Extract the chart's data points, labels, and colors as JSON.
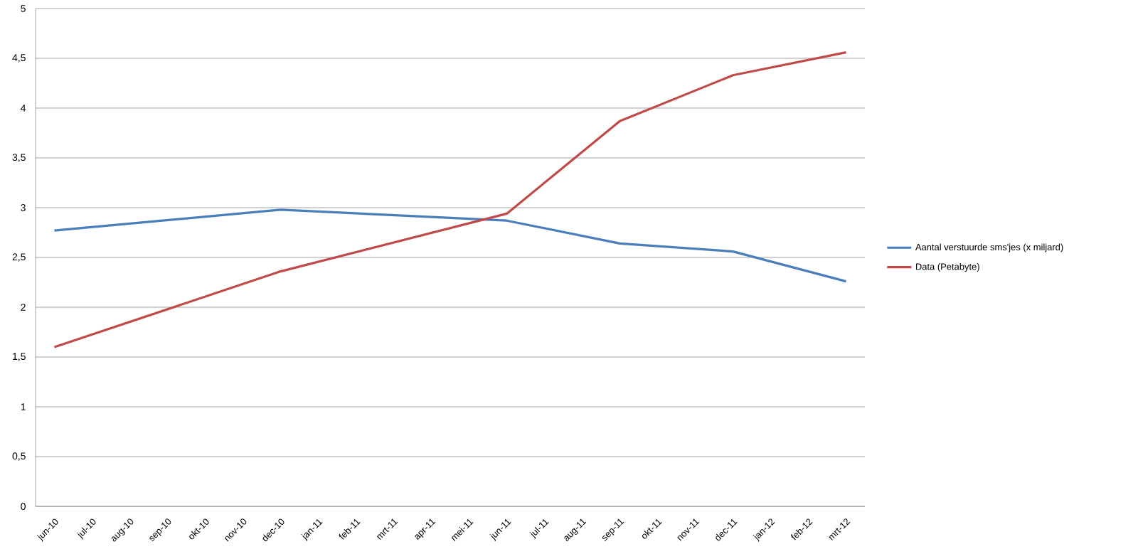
{
  "chart_data": {
    "type": "line",
    "categories": [
      "jun-10",
      "jul-10",
      "aug-10",
      "sep-10",
      "okt-10",
      "nov-10",
      "dec-10",
      "jan-11",
      "feb-11",
      "mrt-11",
      "apr-11",
      "mei-11",
      "jun-11",
      "jul-11",
      "aug-11",
      "sep-11",
      "okt-11",
      "nov-11",
      "dec-11",
      "jan-12",
      "feb-12",
      "mrt-12"
    ],
    "series": [
      {
        "name": "Aantal verstuurde sms'jes (x miljard)",
        "color": "#4a7ebb",
        "values": [
          2.77,
          null,
          null,
          null,
          null,
          null,
          2.98,
          null,
          null,
          null,
          null,
          null,
          2.87,
          null,
          null,
          2.64,
          null,
          null,
          2.56,
          null,
          null,
          2.26
        ]
      },
      {
        "name": "Data (Petabyte)",
        "color": "#be4b48",
        "values": [
          1.6,
          null,
          null,
          null,
          null,
          null,
          2.36,
          null,
          null,
          null,
          null,
          null,
          2.94,
          null,
          null,
          3.87,
          null,
          null,
          4.33,
          null,
          null,
          4.56
        ]
      }
    ],
    "ylim": [
      0,
      5
    ],
    "yticks": [
      0,
      {
        "value": 0.5,
        "label": "0,5"
      },
      1,
      {
        "value": 1.5,
        "label": "1,5"
      },
      2,
      {
        "value": 2.5,
        "label": "2,5"
      },
      3,
      {
        "value": 3.5,
        "label": "3,5"
      },
      4,
      {
        "value": 4.5,
        "label": "4,5"
      },
      5
    ],
    "grid": "y",
    "legend": "right",
    "marker": "none",
    "line_style": "solid"
  }
}
